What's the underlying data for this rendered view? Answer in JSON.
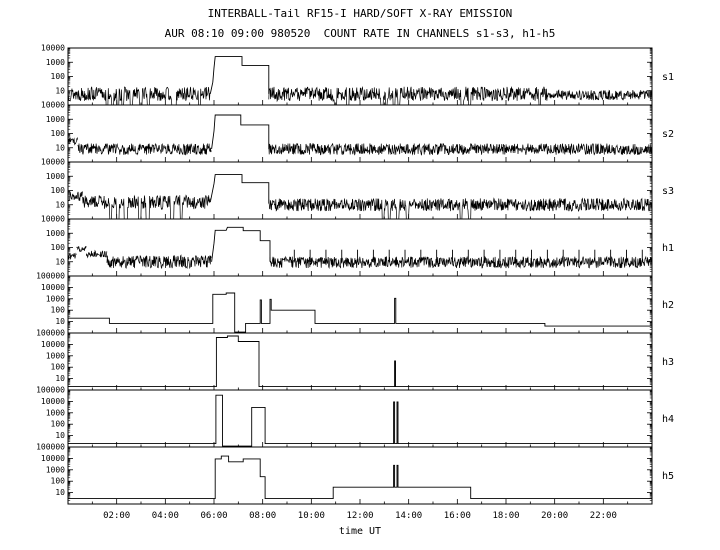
{
  "chart_data": {
    "type": "line",
    "title": "INTERBALL-Tail RF15-I HARD/SOFT X-RAY EMISSION",
    "subtitle": "AUR 08:10 09:00 980520  COUNT RATE IN CHANNELS s1-s3, h1-h5",
    "xlabel": "time UT",
    "x_range_hours": [
      0,
      24
    ],
    "x_major_ticks_hours": [
      2,
      4,
      6,
      8,
      10,
      12,
      14,
      16,
      18,
      20,
      22
    ],
    "x_tick_labels": [
      "02:00",
      "04:00",
      "06:00",
      "08:00",
      "10:00",
      "12:00",
      "14:00",
      "16:00",
      "18:00",
      "20:00",
      "22:00"
    ],
    "y_scale": "log",
    "grid": false,
    "legend": "panel labels on right side",
    "panels": [
      {
        "label": "s1",
        "ymax": 10000,
        "y_ticks": [
          "10",
          "100",
          "1000",
          "10000"
        ],
        "ops": [
          {
            "op": "noisy",
            "t0": 0,
            "t1": 5.85,
            "level": 6,
            "jitter": 0.5,
            "gaps": [
              [
                1.55,
                1.65
              ],
              [
                1.8,
                1.88
              ],
              [
                2.0,
                2.1
              ],
              [
                2.2,
                2.3
              ],
              [
                2.55,
                2.65
              ],
              [
                2.95,
                3.05
              ],
              [
                3.25,
                3.35
              ],
              [
                4.25,
                4.45
              ],
              [
                5.35,
                5.45
              ]
            ]
          },
          {
            "op": "line",
            "points": [
              [
                5.85,
                6
              ],
              [
                5.95,
                40
              ],
              [
                6.0,
                400
              ],
              [
                6.05,
                2500
              ],
              [
                7.15,
                2500
              ],
              [
                7.15,
                600
              ],
              [
                8.25,
                600
              ],
              [
                8.25,
                6
              ]
            ]
          },
          {
            "op": "noisy",
            "t0": 8.25,
            "t1": 19.7,
            "level": 6,
            "jitter": 0.5,
            "gaps": [
              [
                10.95,
                11.05
              ],
              [
                11.45,
                11.55
              ],
              [
                12.85,
                12.95
              ],
              [
                13.05,
                13.12
              ],
              [
                13.35,
                13.45
              ],
              [
                13.55,
                13.65
              ],
              [
                16.15,
                16.25
              ],
              [
                16.45,
                16.55
              ],
              [
                19.35,
                19.42
              ]
            ]
          },
          {
            "op": "noisy",
            "t0": 19.7,
            "t1": 24,
            "level": 5,
            "jitter": 0.35,
            "gaps": []
          }
        ]
      },
      {
        "label": "s2",
        "ymax": 10000,
        "y_ticks": [
          "10",
          "100",
          "1000",
          "10000"
        ],
        "ops": [
          {
            "op": "noisy",
            "t0": 0,
            "t1": 0.4,
            "level": 30,
            "jitter": 0.3,
            "gaps": []
          },
          {
            "op": "noisy",
            "t0": 0.4,
            "t1": 5.9,
            "level": 8,
            "jitter": 0.4,
            "gaps": []
          },
          {
            "op": "line",
            "points": [
              [
                5.9,
                8
              ],
              [
                6.0,
                150
              ],
              [
                6.05,
                2000
              ],
              [
                7.1,
                2000
              ],
              [
                7.1,
                400
              ],
              [
                8.25,
                400
              ],
              [
                8.25,
                8
              ]
            ]
          },
          {
            "op": "noisy",
            "t0": 8.25,
            "t1": 24,
            "level": 8,
            "jitter": 0.4,
            "gaps": []
          }
        ]
      },
      {
        "label": "s3",
        "ymax": 10000,
        "y_ticks": [
          "10",
          "100",
          "1000",
          "10000"
        ],
        "ops": [
          {
            "op": "noisy",
            "t0": 0,
            "t1": 0.6,
            "level": 40,
            "jitter": 0.35,
            "gaps": []
          },
          {
            "op": "noisy",
            "t0": 0.6,
            "t1": 5.85,
            "level": 15,
            "jitter": 0.5,
            "gaps": [
              [
                1.7,
                1.8
              ],
              [
                2.0,
                2.1
              ],
              [
                2.3,
                2.45
              ],
              [
                2.9,
                3.0
              ],
              [
                3.2,
                3.35
              ],
              [
                4.2,
                4.35
              ],
              [
                4.6,
                4.7
              ]
            ]
          },
          {
            "op": "line",
            "points": [
              [
                5.85,
                15
              ],
              [
                6.0,
                300
              ],
              [
                6.05,
                1300
              ],
              [
                7.15,
                1300
              ],
              [
                7.15,
                350
              ],
              [
                8.25,
                350
              ],
              [
                8.25,
                12
              ]
            ]
          },
          {
            "op": "noisy",
            "t0": 8.25,
            "t1": 24,
            "level": 10,
            "jitter": 0.45,
            "gaps": [
              [
                12.9,
                13.0
              ],
              [
                13.15,
                13.25
              ],
              [
                13.5,
                13.6
              ],
              [
                13.9,
                14.0
              ],
              [
                16.1,
                16.2
              ],
              [
                16.45,
                16.55
              ]
            ]
          }
        ]
      },
      {
        "label": "h1",
        "ymax": 10000,
        "y_ticks": [
          "10",
          "100",
          "1000",
          "10000"
        ],
        "ops": [
          {
            "op": "noisy",
            "t0": 0,
            "t1": 0.35,
            "level": 25,
            "jitter": 0.25,
            "gaps": []
          },
          {
            "op": "noisy",
            "t0": 0.35,
            "t1": 0.75,
            "level": 80,
            "jitter": 0.2,
            "gaps": []
          },
          {
            "op": "noisy",
            "t0": 0.75,
            "t1": 1.6,
            "level": 35,
            "jitter": 0.25,
            "gaps": []
          },
          {
            "op": "noisy",
            "t0": 1.6,
            "t1": 5.9,
            "level": 10,
            "jitter": 0.45,
            "gaps": []
          },
          {
            "op": "line",
            "points": [
              [
                5.9,
                10
              ],
              [
                6.0,
                200
              ],
              [
                6.05,
                1600
              ],
              [
                6.5,
                1600
              ],
              [
                6.55,
                2600
              ],
              [
                7.2,
                2600
              ],
              [
                7.2,
                1500
              ],
              [
                7.9,
                1500
              ],
              [
                7.9,
                300
              ],
              [
                8.3,
                300
              ],
              [
                8.3,
                10
              ]
            ]
          },
          {
            "op": "noisy",
            "t0": 8.3,
            "t1": 24,
            "level": 9,
            "jitter": 0.4,
            "gaps": []
          },
          {
            "op": "spikes",
            "t0": 9.3,
            "t1": 23.9,
            "period": 0.65,
            "base": 9,
            "v": 70
          }
        ]
      },
      {
        "label": "h2",
        "ymax": 100000,
        "y_ticks": [
          "10",
          "100",
          "1000",
          "10000",
          "100000"
        ],
        "ops": [
          {
            "op": "line",
            "points": [
              [
                0,
                20
              ],
              [
                1.7,
                20
              ],
              [
                1.7,
                7
              ],
              [
                5.95,
                7
              ],
              [
                5.95,
                2500
              ],
              [
                6.5,
                2500
              ],
              [
                6.5,
                3200
              ],
              [
                6.85,
                3200
              ],
              [
                6.85,
                1.2
              ],
              [
                7.3,
                1.2
              ],
              [
                7.3,
                7
              ],
              [
                7.9,
                7
              ],
              [
                7.9,
                800
              ],
              [
                7.95,
                800
              ],
              [
                7.95,
                7
              ],
              [
                8.3,
                7
              ],
              [
                8.3,
                900
              ],
              [
                8.35,
                900
              ],
              [
                8.35,
                100
              ],
              [
                10.15,
                100
              ],
              [
                10.15,
                7
              ],
              [
                13.42,
                7
              ],
              [
                13.42,
                1100
              ],
              [
                13.47,
                1100
              ],
              [
                13.47,
                7
              ],
              [
                19.6,
                7
              ],
              [
                19.6,
                4
              ],
              [
                24,
                4
              ]
            ]
          }
        ]
      },
      {
        "label": "h3",
        "ymax": 100000,
        "y_ticks": [
          "10",
          "100",
          "1000",
          "10000",
          "100000"
        ],
        "ops": [
          {
            "op": "line",
            "points": [
              [
                0,
                2
              ],
              [
                6.1,
                2
              ],
              [
                6.1,
                40000
              ],
              [
                6.55,
                40000
              ],
              [
                6.55,
                55000
              ],
              [
                7.0,
                55000
              ],
              [
                7.0,
                18000
              ],
              [
                7.85,
                18000
              ],
              [
                7.85,
                2
              ],
              [
                13.42,
                2
              ],
              [
                13.42,
                350
              ],
              [
                13.46,
                350
              ],
              [
                13.46,
                2
              ],
              [
                24,
                2
              ]
            ]
          }
        ]
      },
      {
        "label": "h4",
        "ymax": 100000,
        "y_ticks": [
          "10",
          "100",
          "1000",
          "10000",
          "100000"
        ],
        "ops": [
          {
            "op": "line",
            "points": [
              [
                0,
                2
              ],
              [
                6.08,
                2
              ],
              [
                6.08,
                35000
              ],
              [
                6.35,
                35000
              ],
              [
                6.35,
                1.2
              ],
              [
                7.55,
                1.2
              ],
              [
                7.55,
                3000
              ],
              [
                8.1,
                3000
              ],
              [
                8.1,
                2
              ],
              [
                13.38,
                2
              ],
              [
                13.38,
                9000
              ],
              [
                13.42,
                9000
              ],
              [
                13.42,
                2
              ],
              [
                13.52,
                2
              ],
              [
                13.52,
                9000
              ],
              [
                13.56,
                9000
              ],
              [
                13.56,
                2
              ],
              [
                24,
                2
              ]
            ]
          }
        ]
      },
      {
        "label": "h5",
        "ymax": 100000,
        "y_ticks": [
          "10",
          "100",
          "1000",
          "10000",
          "100000"
        ],
        "ops": [
          {
            "op": "line",
            "points": [
              [
                0,
                3
              ],
              [
                6.05,
                3
              ],
              [
                6.05,
                9000
              ],
              [
                6.3,
                9000
              ],
              [
                6.3,
                16000
              ],
              [
                6.6,
                16000
              ],
              [
                6.6,
                5000
              ],
              [
                7.2,
                5000
              ],
              [
                7.2,
                9000
              ],
              [
                7.9,
                9000
              ],
              [
                7.9,
                250
              ],
              [
                8.1,
                250
              ],
              [
                8.1,
                3
              ],
              [
                10.9,
                3
              ],
              [
                10.9,
                30
              ],
              [
                13.38,
                30
              ],
              [
                13.38,
                2500
              ],
              [
                13.42,
                2500
              ],
              [
                13.42,
                30
              ],
              [
                13.52,
                30
              ],
              [
                13.52,
                2500
              ],
              [
                13.56,
                2500
              ],
              [
                13.56,
                30
              ],
              [
                16.55,
                30
              ],
              [
                16.55,
                3
              ],
              [
                24,
                3
              ]
            ]
          }
        ]
      }
    ]
  }
}
